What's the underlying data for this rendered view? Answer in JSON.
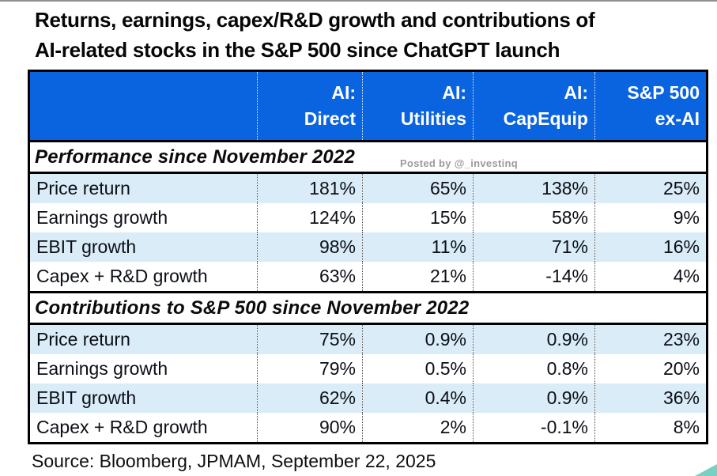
{
  "title": {
    "line1": "Returns, earnings, capex/R&D growth and contributions of",
    "line2": "AI-related stocks in the S&P 500 since ChatGPT launch"
  },
  "watermark": "Posted by @_investinq",
  "source": "Source: Bloomberg, JPMAM, September 22, 2025",
  "colors": {
    "header_bg": "#0a64e0",
    "header_text": "#ffffff",
    "alt_row_bg": "#d9ecf8",
    "border": "#000000",
    "corner_accent": "#5ec9b9"
  },
  "table": {
    "columns": [
      {
        "line1": "AI:",
        "line2": "Direct"
      },
      {
        "line1": "AI:",
        "line2": "Utilities"
      },
      {
        "line1": "AI:",
        "line2": "CapEquip"
      },
      {
        "line1": "S&P 500",
        "line2": "ex-AI"
      }
    ],
    "sections": [
      {
        "header": "Performance since November 2022",
        "rows": [
          {
            "label": "Price return",
            "values": [
              "181%",
              "65%",
              "138%",
              "25%"
            ]
          },
          {
            "label": "Earnings growth",
            "values": [
              "124%",
              "15%",
              "58%",
              "9%"
            ]
          },
          {
            "label": "EBIT growth",
            "values": [
              "98%",
              "11%",
              "71%",
              "16%"
            ]
          },
          {
            "label": "Capex + R&D growth",
            "values": [
              "63%",
              "21%",
              "-14%",
              "4%"
            ]
          }
        ]
      },
      {
        "header": "Contributions to S&P 500 since November 2022",
        "rows": [
          {
            "label": "Price return",
            "values": [
              "75%",
              "0.9%",
              "0.9%",
              "23%"
            ]
          },
          {
            "label": "Earnings growth",
            "values": [
              "79%",
              "0.5%",
              "0.8%",
              "20%"
            ]
          },
          {
            "label": "EBIT growth",
            "values": [
              "62%",
              "0.4%",
              "0.9%",
              "36%"
            ]
          },
          {
            "label": "Capex + R&D growth",
            "values": [
              "90%",
              "2%",
              "-0.1%",
              "8%"
            ]
          }
        ]
      }
    ]
  },
  "chart_data": {
    "type": "table",
    "title": "Returns, earnings, capex/R&D growth and contributions of AI-related stocks in the S&P 500 since ChatGPT launch",
    "columns": [
      "AI: Direct",
      "AI: Utilities",
      "AI: CapEquip",
      "S&P 500 ex-AI"
    ],
    "sections": [
      {
        "name": "Performance since November 2022",
        "unit": "percent",
        "rows": [
          {
            "metric": "Price return",
            "values": [
              181,
              65,
              138,
              25
            ]
          },
          {
            "metric": "Earnings growth",
            "values": [
              124,
              15,
              58,
              9
            ]
          },
          {
            "metric": "EBIT growth",
            "values": [
              98,
              11,
              71,
              16
            ]
          },
          {
            "metric": "Capex + R&D growth",
            "values": [
              63,
              21,
              -14,
              4
            ]
          }
        ]
      },
      {
        "name": "Contributions to S&P 500 since November 2022",
        "unit": "percent",
        "rows": [
          {
            "metric": "Price return",
            "values": [
              75,
              0.9,
              0.9,
              23
            ]
          },
          {
            "metric": "Earnings growth",
            "values": [
              79,
              0.5,
              0.8,
              20
            ]
          },
          {
            "metric": "EBIT growth",
            "values": [
              62,
              0.4,
              0.9,
              36
            ]
          },
          {
            "metric": "Capex + R&D growth",
            "values": [
              90,
              2,
              -0.1,
              8
            ]
          }
        ]
      }
    ],
    "source": "Bloomberg, JPMAM, September 22, 2025"
  }
}
